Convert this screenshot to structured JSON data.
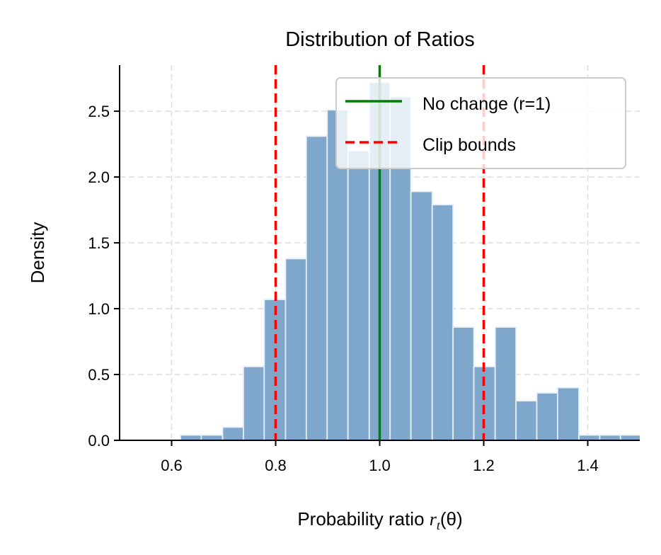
{
  "chart_data": {
    "type": "bar",
    "subtype": "histogram",
    "title": "Distribution of Ratios",
    "xlabel": {
      "text": "Probability ratio ",
      "var": "r",
      "sub": "t",
      "arg": "(θ)"
    },
    "ylabel": "Density",
    "xlim": [
      0.5,
      1.5
    ],
    "ylim": [
      0,
      2.85
    ],
    "xticks": [
      "0.6",
      "0.8",
      "1.0",
      "1.2",
      "1.4"
    ],
    "yticks": [
      "0.0",
      "0.5",
      "1.0",
      "1.5",
      "2.0",
      "2.5"
    ],
    "grid": true,
    "bin_edges": [
      0.617,
      0.657,
      0.698,
      0.738,
      0.778,
      0.819,
      0.859,
      0.899,
      0.939,
      0.98,
      1.02,
      1.06,
      1.101,
      1.141,
      1.181,
      1.222,
      1.262,
      1.302,
      1.342,
      1.383,
      1.423,
      1.463,
      1.504
    ],
    "values": [
      0.04,
      0.04,
      0.1,
      0.56,
      1.07,
      1.38,
      2.31,
      2.51,
      2.2,
      2.72,
      2.61,
      1.89,
      1.79,
      0.86,
      0.56,
      0.86,
      0.3,
      0.36,
      0.4,
      0.04,
      0.04,
      0.04
    ],
    "bar_color": "#7fa7cb",
    "reference_lines": [
      {
        "x": 1.0,
        "style": "solid",
        "color": "#008000",
        "legend": "No change (r=1)"
      },
      {
        "x": 0.8,
        "style": "dashed",
        "color": "#ff0000",
        "legend": "Clip bounds"
      },
      {
        "x": 1.2,
        "style": "dashed",
        "color": "#ff0000"
      }
    ],
    "legend": {
      "position": "upper-right",
      "entries": [
        "No change (r=1)",
        "Clip bounds"
      ]
    }
  }
}
